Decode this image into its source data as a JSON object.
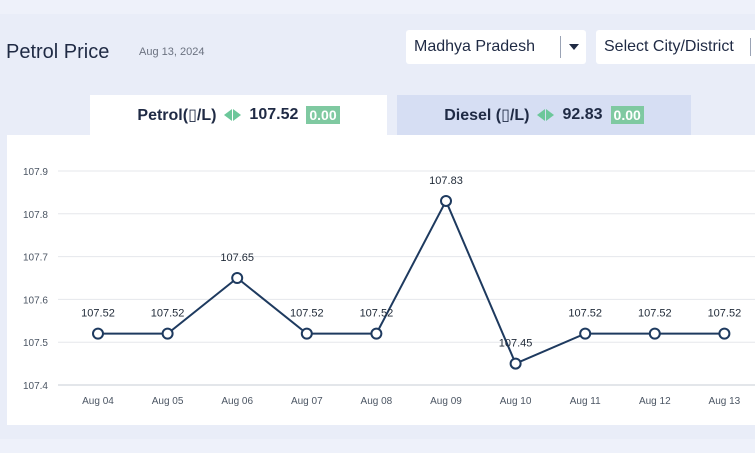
{
  "header": {
    "title": "Petrol Price",
    "date": "Aug 13, 2024",
    "state_select": {
      "value": "Madhya Pradesh"
    },
    "city_select": {
      "placeholder": "Select City/District"
    }
  },
  "tabs": [
    {
      "label": "Petrol(▯/L)",
      "price": "107.52",
      "change": "0.00"
    },
    {
      "label": "Diesel (▯/L)",
      "price": "92.83",
      "change": "0.00"
    }
  ],
  "colors": {
    "line": "#1e3a5f",
    "grid": "#e5e7eb",
    "badge": "#7fc9a1",
    "active_tab": "#ffffff",
    "inactive_tab": "#d6def3"
  },
  "chart_data": {
    "type": "line",
    "categories": [
      "Aug 04",
      "Aug 05",
      "Aug 06",
      "Aug 07",
      "Aug 08",
      "Aug 09",
      "Aug 10",
      "Aug 11",
      "Aug 12",
      "Aug 13"
    ],
    "values": [
      107.52,
      107.52,
      107.65,
      107.52,
      107.52,
      107.83,
      107.45,
      107.52,
      107.52,
      107.52
    ],
    "data_labels": [
      "107.52",
      "107.52",
      "107.65",
      "107.52",
      "107.52",
      "107.83",
      "107.45",
      "107.52",
      "107.52",
      "107.52"
    ],
    "yticks": [
      107.4,
      107.5,
      107.6,
      107.7,
      107.8,
      107.9
    ],
    "ytick_labels": [
      "107.4",
      "107.5",
      "107.6",
      "107.7",
      "107.8",
      "107.9"
    ],
    "ylim": [
      107.4,
      107.9
    ],
    "grid": true
  }
}
